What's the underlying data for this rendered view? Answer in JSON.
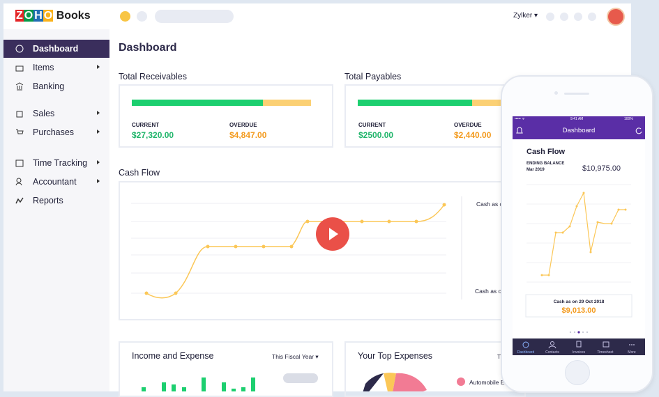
{
  "header": {
    "logo_letters": [
      "Z",
      "O",
      "H",
      "O"
    ],
    "logo_product": "Books",
    "org": "Zylker ▾"
  },
  "sidebar": {
    "items": [
      "Dashboard",
      "Items",
      "Banking",
      "Sales",
      "Purchases",
      "Time Tracking",
      "Accountant",
      "Reports"
    ]
  },
  "main": {
    "title": "Dashboard",
    "receivables": {
      "title": "Total Receivables",
      "current_label": "CURRENT",
      "current_value": "$27,320.00",
      "overdue_label": "OVERDUE",
      "overdue_value": "$4,847.00"
    },
    "payables": {
      "title": "Total Payables",
      "current_label": "CURRENT",
      "current_value": "$2500.00",
      "overdue_label": "OVERDUE",
      "overdue_value": "$2,440.00"
    },
    "cash_flow": {
      "title": "Cash Flow",
      "label_top": "Cash as c",
      "label_bottom": "Cash as o"
    },
    "income_expense": {
      "title": "Income and Expense",
      "period": "This Fiscal Year ▾"
    },
    "top_expenses": {
      "title": "Your Top Expenses",
      "period": "T",
      "legend_0": "Automobile E"
    }
  },
  "phone": {
    "status_time": "9:41 AM",
    "status_battery": "100%",
    "status_carrier": "••••• ᯤ",
    "header_title": "Dashboard",
    "card_title": "Cash Flow",
    "ending_label": "ENDING BALANCE",
    "ending_date": "Mar 2019",
    "ending_value": "$10,975.00",
    "cash_as_on": "Cash as on  29 Oct 2018",
    "cash_value": "$9,013.00",
    "tabs": [
      "Dashboard",
      "Contacts",
      "Invoices",
      "Timesheet",
      "More"
    ]
  }
}
